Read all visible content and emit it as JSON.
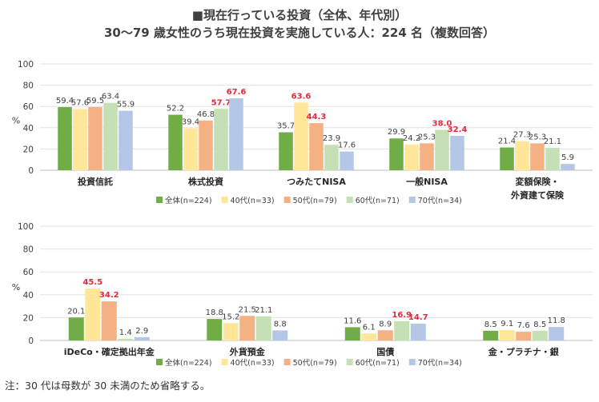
{
  "title_line1": "■現在行っている投資（全体、年代別）",
  "title_line2": "30～79 歳女性のうち現在投資を実施している人：224 名（複数回答）",
  "note": "注：30 代は母数が 30 未満のため省略する。",
  "colors": {
    "全体": "#70ad47",
    "40代": "#ffe699",
    "50代": "#f4b183",
    "60代": "#c5e0b4",
    "70代": "#b4c7e7",
    "highlight": "#e8283c"
  },
  "chart_data": [
    {
      "type": "bar",
      "ylabel": "%",
      "ylim": [
        0,
        100
      ],
      "yticks": [
        "0",
        "20",
        "40",
        "60",
        "80",
        "100"
      ],
      "categories": [
        "投資信託",
        "株式投資",
        "つみたてNISA",
        "一般NISA",
        "変額保険・\n外資建て保険"
      ],
      "series": [
        {
          "name": "全体(n=224)",
          "values": [
            59.4,
            52.2,
            35.7,
            29.9,
            21.4
          ]
        },
        {
          "name": "40代(n=33)",
          "values": [
            57.6,
            39.4,
            63.6,
            24.2,
            27.3
          ]
        },
        {
          "name": "50代(n=79)",
          "values": [
            59.5,
            46.8,
            44.3,
            25.3,
            25.3
          ]
        },
        {
          "name": "60代(n=71)",
          "values": [
            63.4,
            57.7,
            23.9,
            38.0,
            21.1
          ]
        },
        {
          "name": "70代(n=34)",
          "values": [
            55.9,
            67.6,
            17.6,
            32.4,
            5.9
          ]
        }
      ],
      "labels": [
        [
          "59.4",
          "52.2",
          "35.7",
          "29.9",
          "21.4"
        ],
        [
          "57.6",
          "39.4",
          "63.6",
          "24.2",
          "27.3"
        ],
        [
          "59.5",
          "46.8",
          "44.3",
          "25.3",
          "25.3"
        ],
        [
          "63.4",
          "57.7",
          "23.9",
          "38.0",
          "21.1"
        ],
        [
          "55.9",
          "67.6",
          "17.6",
          "32.4",
          "5.9"
        ]
      ],
      "highlights": [
        [
          2,
          1
        ],
        [
          2,
          2
        ],
        [
          3,
          3
        ],
        [
          3,
          4
        ],
        [
          1,
          3
        ],
        [
          1,
          4
        ]
      ]
    },
    {
      "type": "bar",
      "ylabel": "%",
      "ylim": [
        0,
        100
      ],
      "yticks": [
        "0",
        "20",
        "40",
        "60",
        "80",
        "100"
      ],
      "categories": [
        "iDeCo・確定拠出年金",
        "外貨預金",
        "国債",
        "金・プラチナ・銀"
      ],
      "series": [
        {
          "name": "全体(n=224)",
          "values": [
            20.1,
            18.8,
            11.6,
            8.5
          ]
        },
        {
          "name": "40代(n=33)",
          "values": [
            45.5,
            15.2,
            6.1,
            9.1
          ]
        },
        {
          "name": "50代(n=79)",
          "values": [
            34.2,
            21.5,
            8.9,
            7.6
          ]
        },
        {
          "name": "60代(n=71)",
          "values": [
            1.4,
            21.1,
            16.9,
            8.5
          ]
        },
        {
          "name": "70代(n=34)",
          "values": [
            2.9,
            8.8,
            14.7,
            11.8
          ]
        }
      ],
      "labels": [
        [
          "20.1",
          "18.8",
          "11.6",
          "8.5"
        ],
        [
          "45.5",
          "15.2",
          "6.1",
          "9.1"
        ],
        [
          "34.2",
          "21.5",
          "8.9",
          "7.6"
        ],
        [
          "1.4",
          "21.1",
          "16.9",
          "8.5"
        ],
        [
          "2.9",
          "8.8",
          "14.7",
          "11.8"
        ]
      ],
      "highlights": [
        [
          0,
          1
        ],
        [
          0,
          2
        ],
        [
          2,
          3
        ],
        [
          2,
          4
        ]
      ]
    }
  ]
}
